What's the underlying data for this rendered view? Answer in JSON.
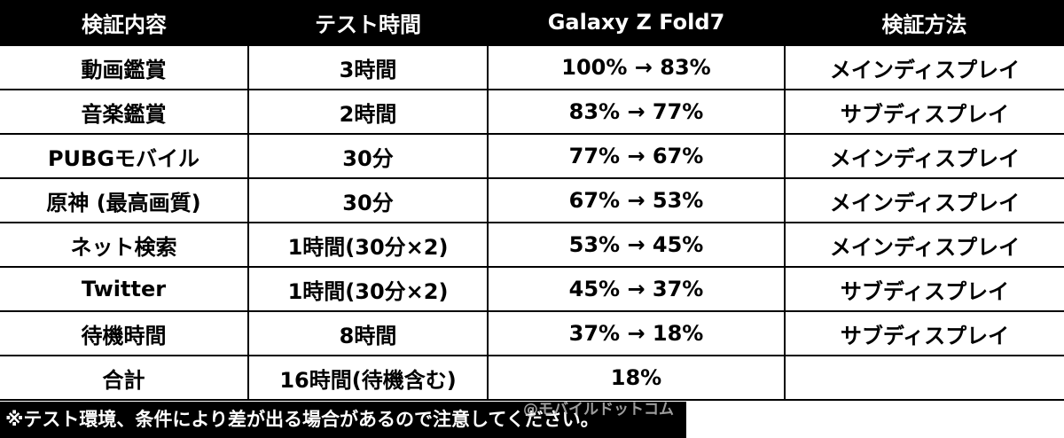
{
  "table": {
    "headers": [
      "検証内容",
      "テスト時間",
      "Galaxy Z Fold7",
      "検証方法"
    ],
    "rows": [
      [
        "動画鑑賞",
        "3時間",
        "100% → 83%",
        "メインディスプレイ"
      ],
      [
        "音楽鑑賞",
        "2時間",
        "83% → 77%",
        "サブディスプレイ"
      ],
      [
        "PUBGモバイル",
        "30分",
        "77% → 67%",
        "メインディスプレイ"
      ],
      [
        "原神 (最高画質)",
        "30分",
        "67% → 53%",
        "メインディスプレイ"
      ],
      [
        "ネット検索",
        "1時間(30分×2)",
        "53% → 45%",
        "メインディスプレイ"
      ],
      [
        "Twitter",
        "1時間(30分×2)",
        "45% → 37%",
        "サブディスプレイ"
      ],
      [
        "待機時間",
        "8時間",
        "37% → 18%",
        "サブディスプレイ"
      ],
      [
        "合計",
        "16時間(待機含む)",
        "18%",
        ""
      ]
    ]
  },
  "footer": {
    "note": "※テスト環境、条件により差が出る場合があるので注意してください。",
    "watermark": "@モバイルドットコム"
  },
  "colors": {
    "header_bg": "#000000",
    "header_text": "#ffffff",
    "cell_border": "#000000",
    "watermark": "#b9b9b9"
  }
}
